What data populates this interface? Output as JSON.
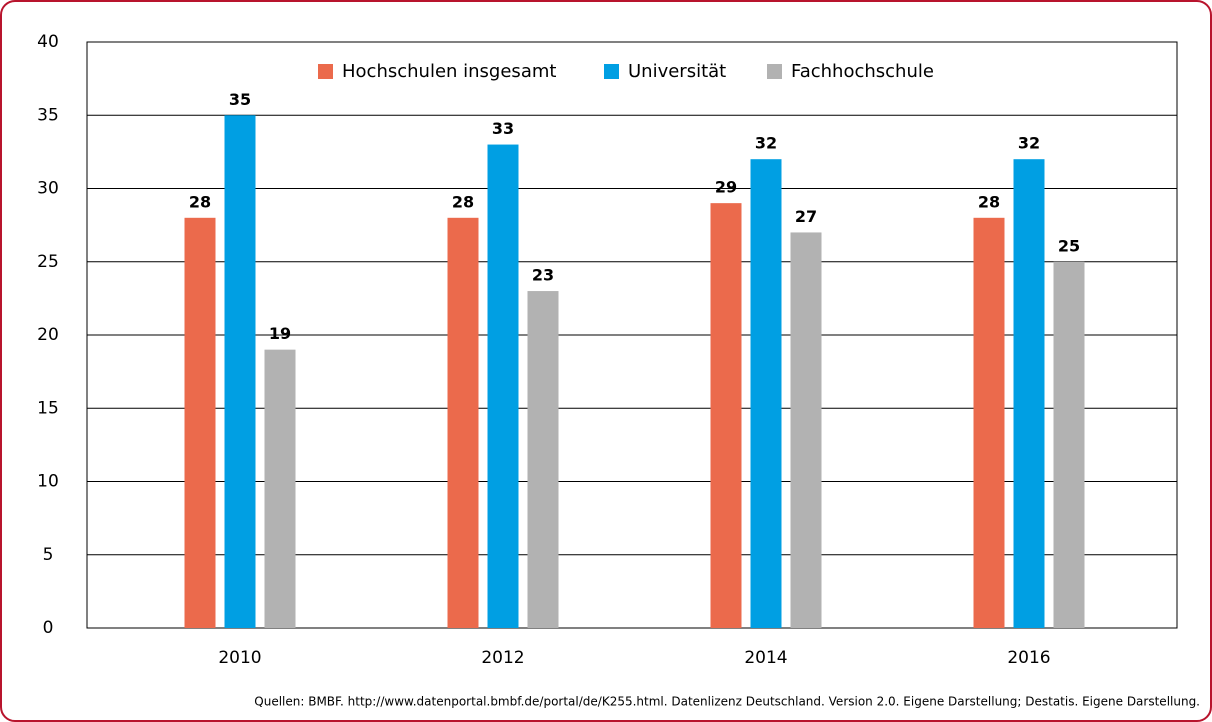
{
  "chart_data": {
    "type": "bar",
    "categories": [
      "2010",
      "2012",
      "2014",
      "2016"
    ],
    "series": [
      {
        "name": "Hochschulen insgesamt",
        "color": "#eb6a4c",
        "values": [
          28,
          28,
          29,
          28
        ]
      },
      {
        "name": "Universität",
        "color": "#009fe3",
        "values": [
          35,
          33,
          32,
          32
        ]
      },
      {
        "name": "Fachhochschule",
        "color": "#b2b2b2",
        "values": [
          19,
          23,
          27,
          25
        ]
      }
    ],
    "ylim": [
      0,
      40
    ],
    "yticks": [
      0,
      5,
      10,
      15,
      20,
      25,
      30,
      35,
      40
    ],
    "grid": true,
    "legend": "top",
    "source": "Quellen: BMBF. http://www.datenportal.bmbf.de/portal/de/K255.html. Datenlizenz Deutschland. Version 2.0. Eigene Darstellung; Destatis. Eigene Darstellung."
  }
}
